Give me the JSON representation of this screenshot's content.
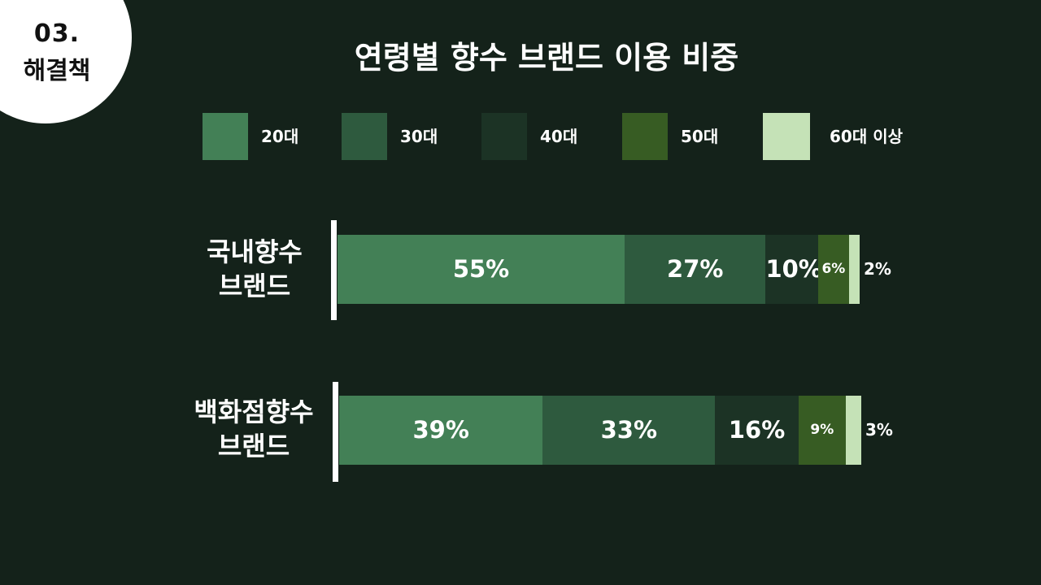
{
  "section": {
    "number": "03.",
    "label": "해결책"
  },
  "chart_data": {
    "type": "bar",
    "orientation": "horizontal",
    "stacked": true,
    "title": "연령별 향수 브랜드 이용 비중",
    "categories": [
      [
        "국내향수",
        "브랜드"
      ],
      [
        "백화점향수",
        "브랜드"
      ]
    ],
    "series": [
      {
        "name": "20대",
        "color": "#438056",
        "values": [
          55,
          39
        ],
        "labels": [
          "55%",
          "39%"
        ]
      },
      {
        "name": "30대",
        "color": "#2e5a3e",
        "values": [
          27,
          33
        ],
        "labels": [
          "27%",
          "33%"
        ]
      },
      {
        "name": "40대",
        "color": "#1c3325",
        "values": [
          10,
          16
        ],
        "labels": [
          "10%",
          "16%"
        ]
      },
      {
        "name": "50대",
        "color": "#375c23",
        "values": [
          6,
          9
        ],
        "labels": [
          "6%",
          "9%"
        ]
      },
      {
        "name": "60대 이상",
        "color": "#c5e2b7",
        "values": [
          2,
          3
        ],
        "labels": [
          "2%",
          "3%"
        ]
      }
    ],
    "legend_position": "top",
    "grid": false
  }
}
